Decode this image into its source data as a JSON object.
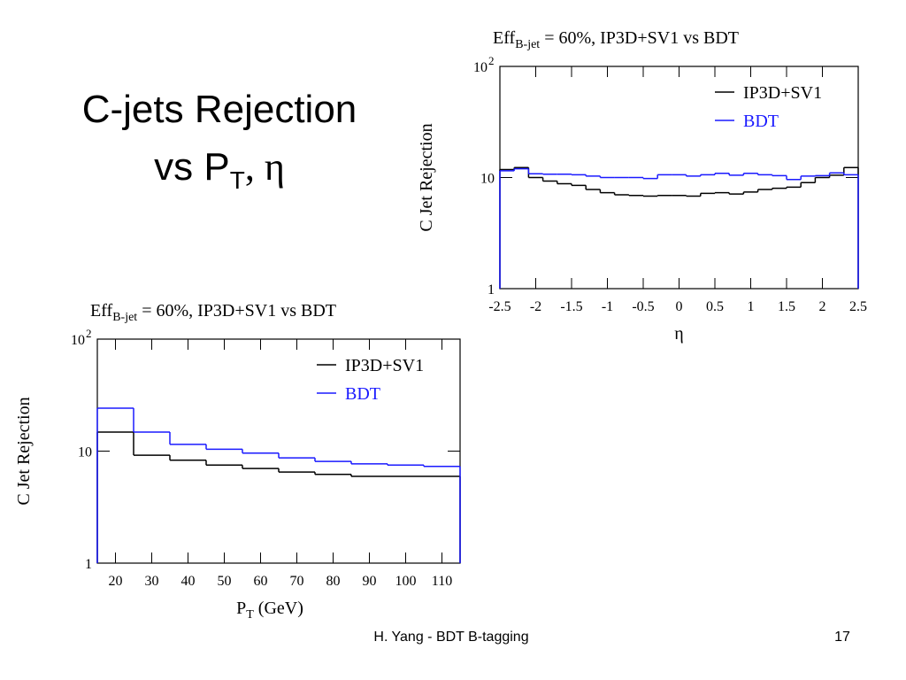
{
  "slide": {
    "title_line1": "C-jets Rejection",
    "title_line2": [
      "vs P",
      "T",
      ", η"
    ],
    "footer": "H. Yang - BDT B-tagging",
    "page": "17"
  },
  "chart_data": [
    {
      "type": "histogram",
      "title": [
        "Eff",
        "B-jet",
        " = 60%, IP3D+SV1 vs BDT"
      ],
      "xlabel": [
        "η"
      ],
      "ylabel": "C Jet Rejection",
      "bins": [
        -2.5,
        -2.3,
        -2.1,
        -1.9,
        -1.7,
        -1.5,
        -1.3,
        -1.1,
        -0.9,
        -0.7,
        -0.5,
        -0.3,
        -0.1,
        0.1,
        0.3,
        0.5,
        0.7,
        0.9,
        1.1,
        1.3,
        1.5,
        1.7,
        1.9,
        2.1,
        2.3,
        2.5
      ],
      "series": [
        {
          "name": "IP3D+SV1",
          "color": "#000000",
          "values": [
            11.8,
            12.3,
            10.0,
            9.3,
            8.8,
            8.5,
            7.8,
            7.3,
            7.0,
            6.9,
            6.8,
            6.9,
            6.9,
            6.8,
            7.2,
            7.3,
            7.1,
            7.4,
            7.8,
            8.0,
            8.2,
            9.0,
            10.0,
            10.5,
            12.3
          ]
        },
        {
          "name": "BDT",
          "color": "#1a1aff",
          "values": [
            11.5,
            12.0,
            10.8,
            10.7,
            10.7,
            10.6,
            10.3,
            10.0,
            10.0,
            10.0,
            9.8,
            10.6,
            10.6,
            10.3,
            10.6,
            10.9,
            10.5,
            10.9,
            10.6,
            10.4,
            9.6,
            10.3,
            10.4,
            11.0,
            10.6
          ]
        }
      ],
      "xlim": [
        -2.5,
        2.5
      ],
      "xticks": [
        -2.5,
        -2,
        -1.5,
        -1,
        -0.5,
        0,
        0.5,
        1,
        1.5,
        2,
        2.5
      ],
      "ylim": [
        1,
        100
      ],
      "ylog": true,
      "yticks": [
        1,
        10,
        {
          "value": 100,
          "label": "10",
          "exponent": "2"
        }
      ],
      "legend": "upper right"
    },
    {
      "type": "histogram",
      "title": [
        "Eff",
        "B-jet",
        " = 60%, IP3D+SV1 vs BDT"
      ],
      "xlabel": [
        "P",
        "T",
        " (GeV)"
      ],
      "ylabel": "C Jet Rejection",
      "bins": [
        15,
        25,
        35,
        45,
        55,
        65,
        75,
        85,
        95,
        105,
        115
      ],
      "series": [
        {
          "name": "IP3D+SV1",
          "color": "#000000",
          "values": [
            14.8,
            9.2,
            8.3,
            7.5,
            7.0,
            6.5,
            6.2,
            5.95,
            5.95,
            5.95
          ]
        },
        {
          "name": "BDT",
          "color": "#1a1aff",
          "values": [
            24.2,
            14.8,
            11.5,
            10.4,
            9.6,
            8.7,
            8.1,
            7.7,
            7.5,
            7.3
          ]
        }
      ],
      "xlim": [
        15,
        115
      ],
      "xticks": [
        20,
        30,
        40,
        50,
        60,
        70,
        80,
        90,
        100,
        110
      ],
      "ylim": [
        1,
        100
      ],
      "ylog": true,
      "yticks": [
        1,
        10,
        {
          "value": 100,
          "label": "10",
          "exponent": "2"
        }
      ],
      "legend": "upper right"
    }
  ]
}
